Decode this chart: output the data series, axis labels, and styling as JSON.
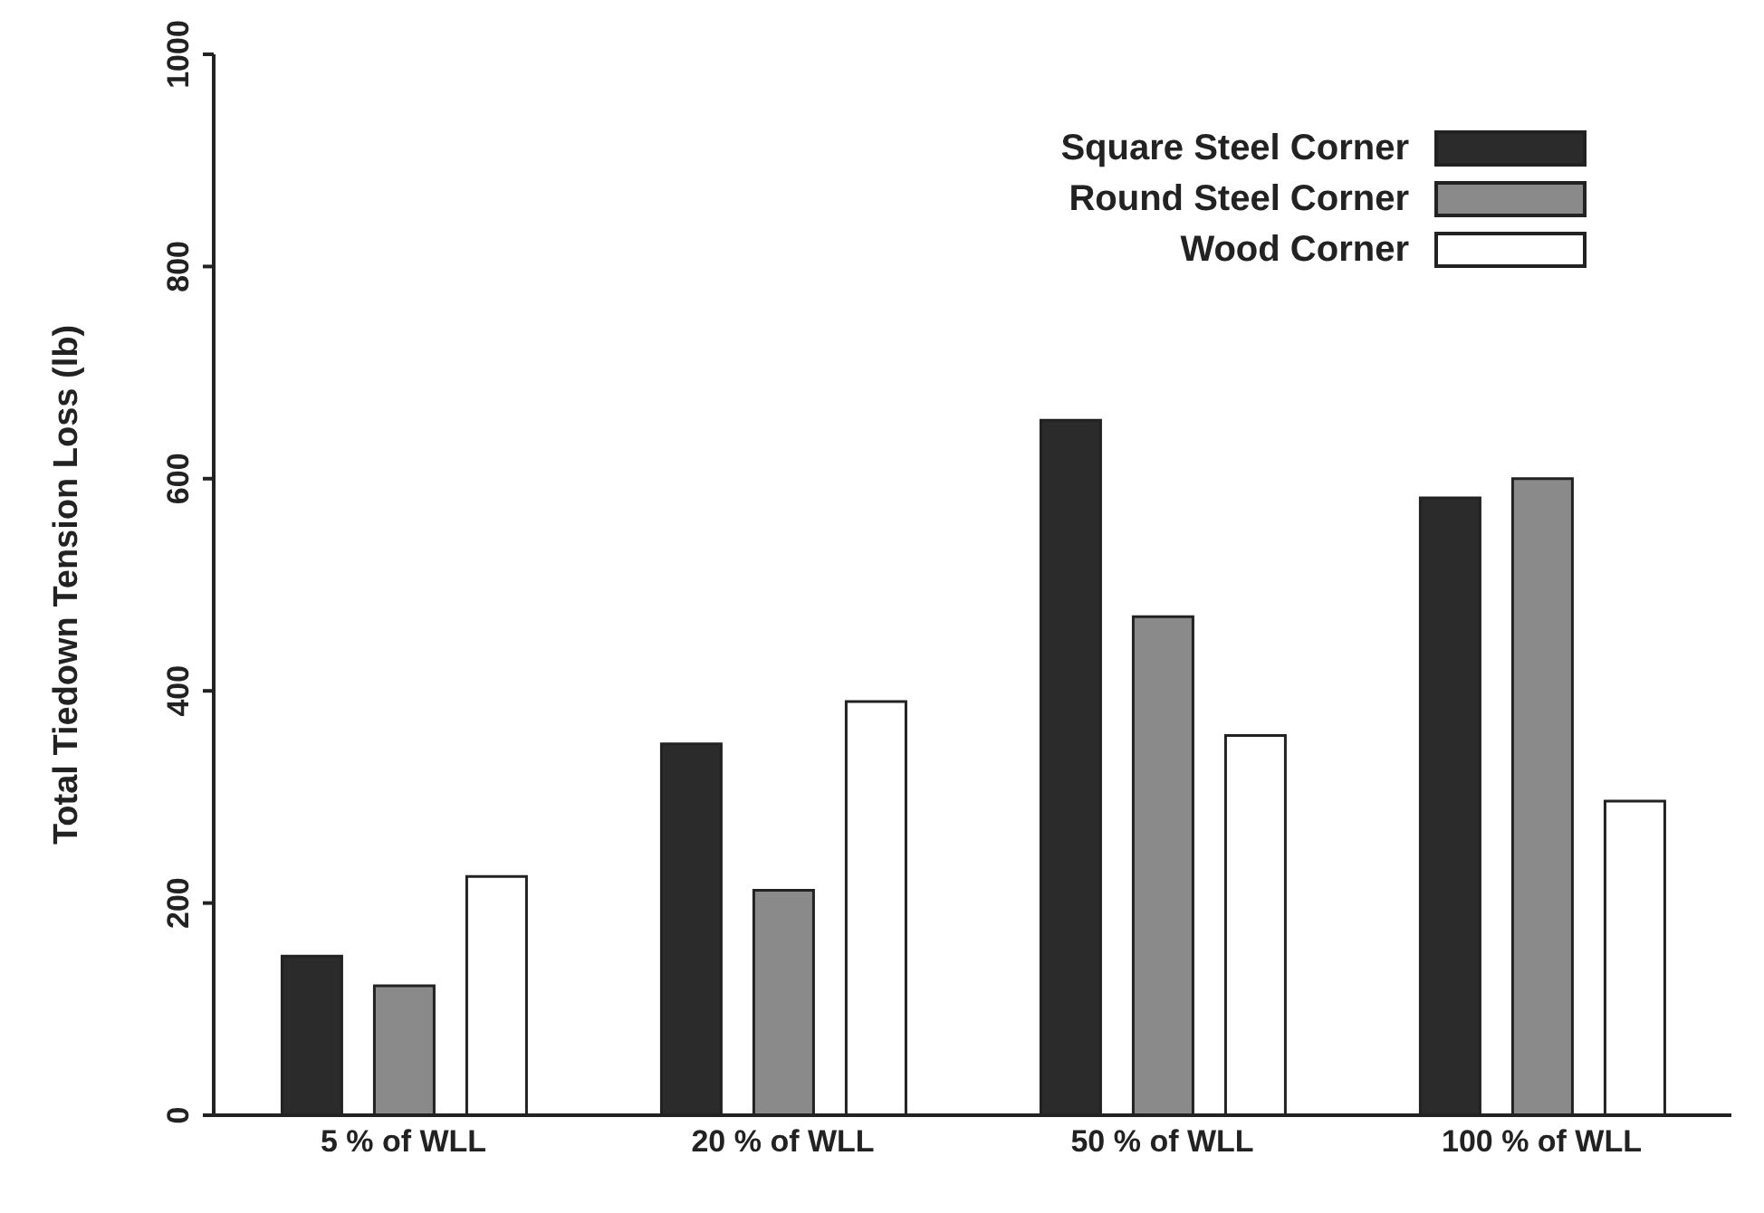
{
  "chart_data": {
    "type": "bar",
    "ylabel": "Total Tiedown Tension Loss (lb)",
    "categories": [
      "5 % of WLL",
      "20 % of WLL",
      "50 % of WLL",
      "100 % of WLL"
    ],
    "series": [
      {
        "name": "Square Steel Corner",
        "color": "#2b2b2b",
        "values": [
          150,
          350,
          655,
          582
        ]
      },
      {
        "name": "Round Steel Corner",
        "color": "#8a8a8a",
        "values": [
          122,
          212,
          470,
          600
        ]
      },
      {
        "name": "Wood Corner",
        "color": "#ffffff",
        "values": [
          225,
          390,
          358,
          296
        ]
      }
    ],
    "ylim": [
      0,
      1000
    ],
    "yticks": [
      0,
      200,
      400,
      600,
      800,
      1000
    ],
    "grid": false,
    "legend": "top right"
  }
}
